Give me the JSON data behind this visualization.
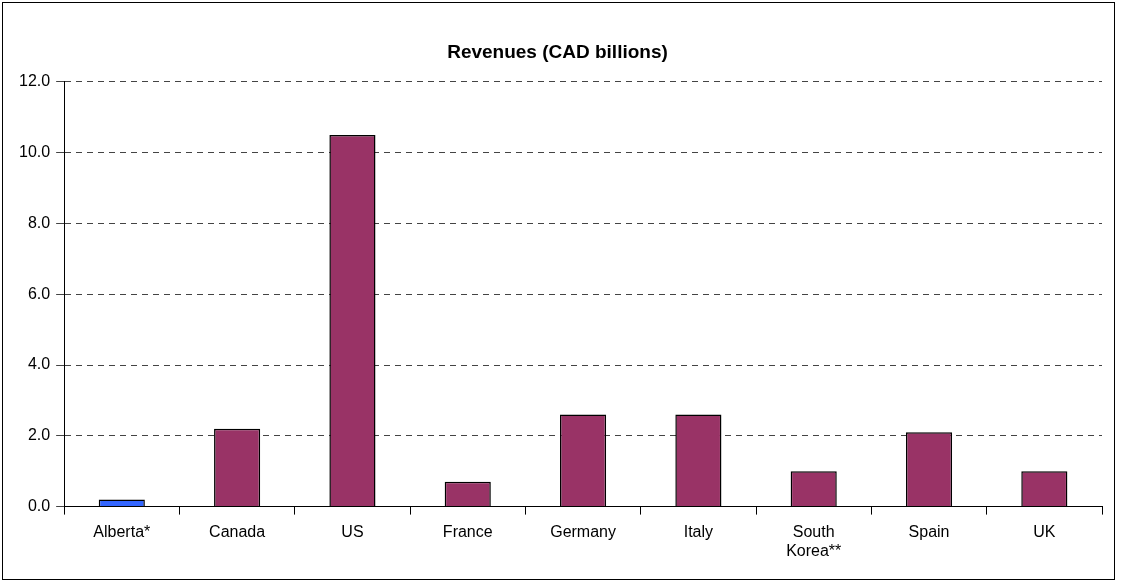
{
  "chart_data": {
    "type": "bar",
    "title": "Revenues (CAD billions)",
    "categories": [
      "Alberta*",
      "Canada",
      "US",
      "France",
      "Germany",
      "Italy",
      "South Korea**",
      "Spain",
      "UK"
    ],
    "values": [
      0.2,
      2.2,
      10.5,
      0.7,
      2.6,
      2.6,
      1.0,
      2.1,
      1.0
    ],
    "colors": [
      "#3366ff",
      "#993366",
      "#993366",
      "#993366",
      "#993366",
      "#993366",
      "#993366",
      "#993366",
      "#993366"
    ],
    "ylim": [
      0,
      12
    ],
    "yticks": [
      {
        "value": 0,
        "label": "0.0"
      },
      {
        "value": 2,
        "label": "2.0"
      },
      {
        "value": 4,
        "label": "4.0"
      },
      {
        "value": 6,
        "label": "6.0"
      },
      {
        "value": 8,
        "label": "8.0"
      },
      {
        "value": 10,
        "label": "10.0"
      },
      {
        "value": 12,
        "label": "12.0"
      }
    ],
    "grid": "y",
    "legend": false
  }
}
